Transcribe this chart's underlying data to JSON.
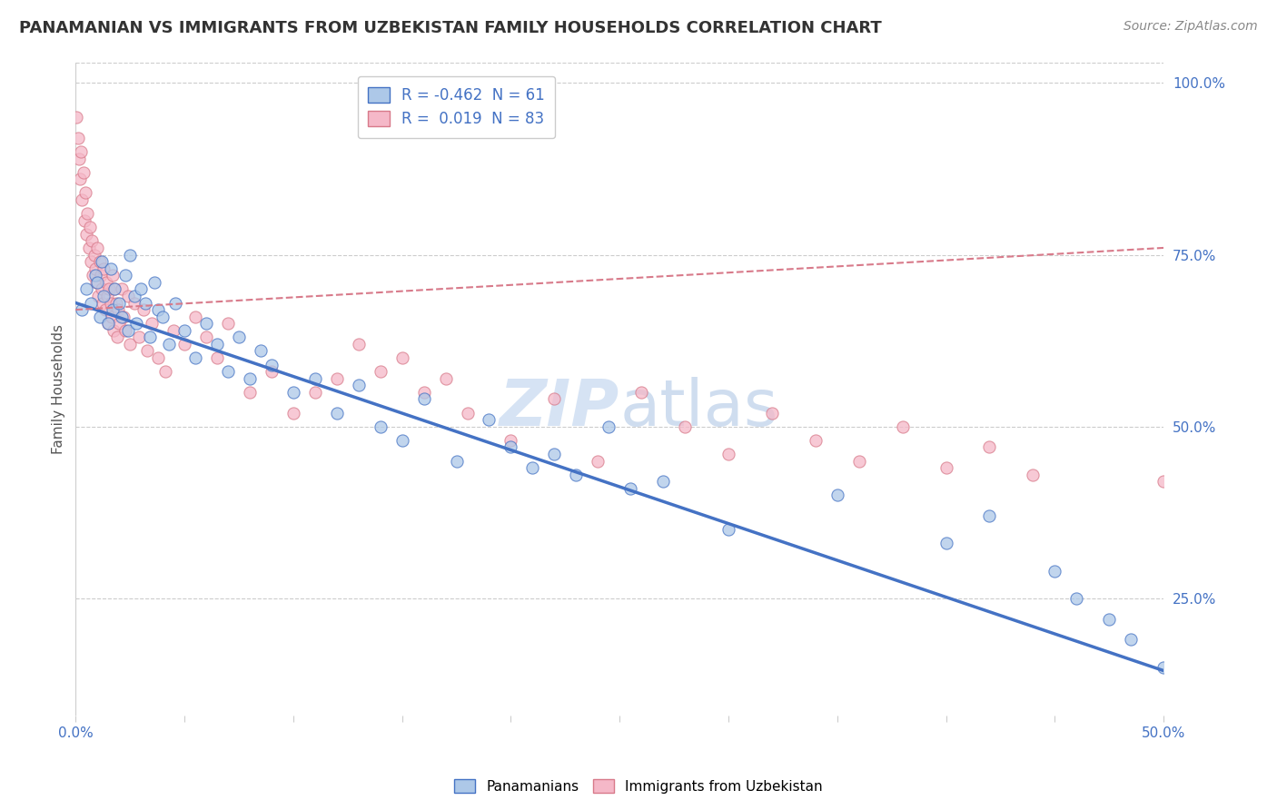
{
  "title": "PANAMANIAN VS IMMIGRANTS FROM UZBEKISTAN FAMILY HOUSEHOLDS CORRELATION CHART",
  "source": "Source: ZipAtlas.com",
  "ylabel": "Family Households",
  "xmin": 0.0,
  "xmax": 50.0,
  "ymin": 8.0,
  "ymax": 103.0,
  "yticks": [
    25.0,
    50.0,
    75.0,
    100.0
  ],
  "ytick_labels": [
    "25.0%",
    "50.0%",
    "75.0%",
    "100.0%"
  ],
  "blue_R": -0.462,
  "blue_N": 61,
  "pink_R": 0.019,
  "pink_N": 83,
  "blue_trend_x": [
    0.0,
    50.0
  ],
  "blue_trend_y": [
    68.0,
    14.5
  ],
  "pink_trend_x": [
    0.0,
    50.0
  ],
  "pink_trend_y": [
    67.0,
    76.0
  ],
  "blue_color": "#adc8e8",
  "pink_color": "#f5b8c8",
  "blue_line_color": "#4472c4",
  "pink_line_color": "#d87a8a",
  "legend_blue_label": "Panamanians",
  "legend_pink_label": "Immigrants from Uzbekistan",
  "watermark_zip": "ZIP",
  "watermark_atlas": "atlas",
  "background_color": "#ffffff",
  "grid_color": "#cccccc",
  "blue_scatter_x": [
    0.3,
    0.5,
    0.7,
    0.9,
    1.0,
    1.1,
    1.2,
    1.3,
    1.5,
    1.6,
    1.7,
    1.8,
    2.0,
    2.1,
    2.3,
    2.4,
    2.5,
    2.7,
    2.8,
    3.0,
    3.2,
    3.4,
    3.6,
    3.8,
    4.0,
    4.3,
    4.6,
    5.0,
    5.5,
    6.0,
    6.5,
    7.0,
    7.5,
    8.0,
    8.5,
    9.0,
    10.0,
    11.0,
    12.0,
    13.0,
    14.0,
    15.0,
    16.0,
    17.5,
    19.0,
    20.0,
    21.0,
    22.0,
    23.0,
    24.5,
    25.5,
    27.0,
    30.0,
    35.0,
    40.0,
    42.0,
    45.0,
    46.0,
    47.5,
    48.5,
    50.0
  ],
  "blue_scatter_y": [
    67,
    70,
    68,
    72,
    71,
    66,
    74,
    69,
    65,
    73,
    67,
    70,
    68,
    66,
    72,
    64,
    75,
    69,
    65,
    70,
    68,
    63,
    71,
    67,
    66,
    62,
    68,
    64,
    60,
    65,
    62,
    58,
    63,
    57,
    61,
    59,
    55,
    57,
    52,
    56,
    50,
    48,
    54,
    45,
    51,
    47,
    44,
    46,
    43,
    50,
    41,
    42,
    35,
    40,
    33,
    37,
    29,
    25,
    22,
    19,
    15
  ],
  "pink_scatter_x": [
    0.05,
    0.1,
    0.15,
    0.2,
    0.25,
    0.3,
    0.35,
    0.4,
    0.45,
    0.5,
    0.55,
    0.6,
    0.65,
    0.7,
    0.75,
    0.8,
    0.85,
    0.9,
    0.95,
    1.0,
    1.05,
    1.1,
    1.15,
    1.2,
    1.25,
    1.3,
    1.35,
    1.4,
    1.45,
    1.5,
    1.55,
    1.6,
    1.65,
    1.7,
    1.75,
    1.8,
    1.85,
    1.9,
    1.95,
    2.0,
    2.1,
    2.2,
    2.3,
    2.4,
    2.5,
    2.7,
    2.9,
    3.1,
    3.3,
    3.5,
    3.8,
    4.1,
    4.5,
    5.0,
    5.5,
    6.0,
    6.5,
    7.0,
    8.0,
    9.0,
    10.0,
    11.0,
    12.0,
    13.0,
    14.0,
    15.0,
    16.0,
    17.0,
    18.0,
    20.0,
    22.0,
    24.0,
    26.0,
    28.0,
    30.0,
    32.0,
    34.0,
    36.0,
    38.0,
    40.0,
    42.0,
    44.0,
    50.0
  ],
  "pink_scatter_y": [
    95,
    92,
    89,
    86,
    90,
    83,
    87,
    80,
    84,
    78,
    81,
    76,
    79,
    74,
    77,
    72,
    75,
    73,
    71,
    76,
    69,
    74,
    72,
    70,
    68,
    73,
    67,
    71,
    69,
    65,
    70,
    68,
    66,
    72,
    64,
    70,
    68,
    63,
    67,
    65,
    70,
    66,
    64,
    69,
    62,
    68,
    63,
    67,
    61,
    65,
    60,
    58,
    64,
    62,
    66,
    63,
    60,
    65,
    55,
    58,
    52,
    55,
    57,
    62,
    58,
    60,
    55,
    57,
    52,
    48,
    54,
    45,
    55,
    50,
    46,
    52,
    48,
    45,
    50,
    44,
    47,
    43,
    42
  ]
}
